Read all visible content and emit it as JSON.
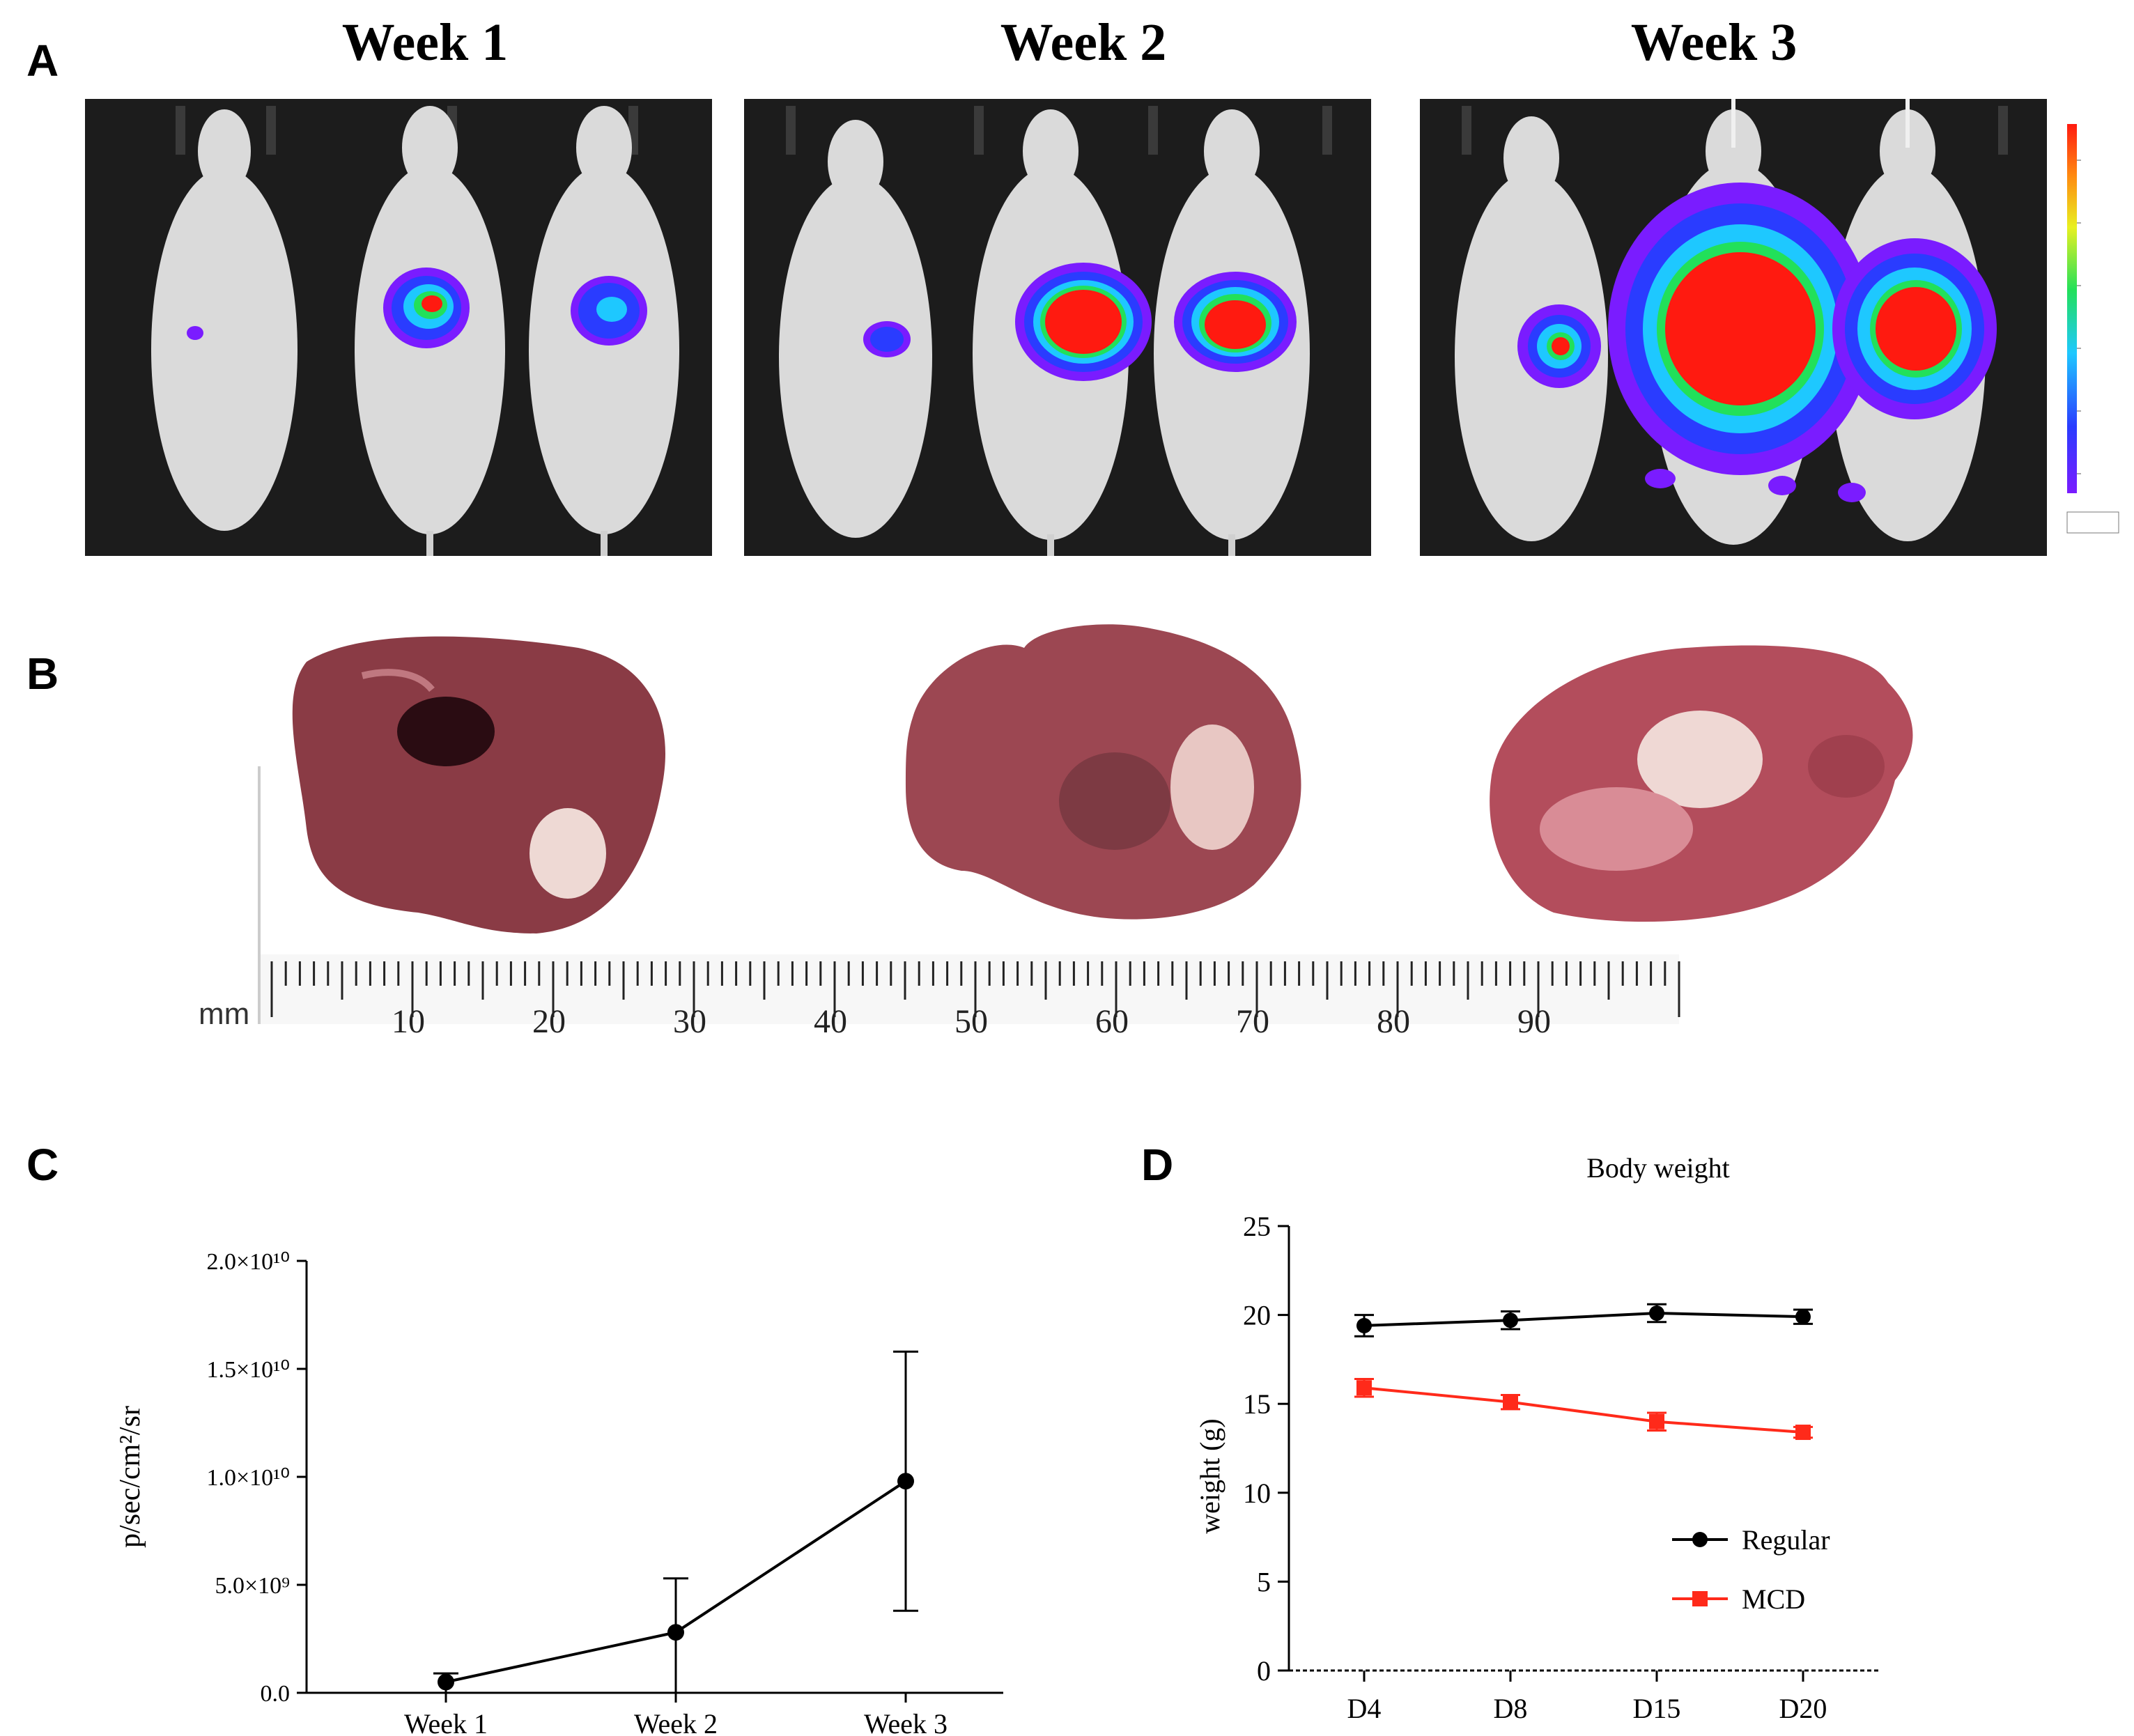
{
  "panels": {
    "a": "A",
    "b": "B",
    "c": "C",
    "d": "D"
  },
  "imaging": {
    "weeks": [
      "Week 1",
      "Week 2",
      "Week 3"
    ],
    "colorbar_colors": [
      "#7a1cff",
      "#2a3cff",
      "#1ec8ff",
      "#22e05a",
      "#e8f020",
      "#ff8a10",
      "#ff1a10"
    ]
  },
  "ruler": {
    "unit": "mm",
    "labels": [
      "10",
      "20",
      "30",
      "40",
      "50",
      "60",
      "70",
      "80",
      "90"
    ]
  },
  "chart_data": [
    {
      "type": "line",
      "panel": "C",
      "title": "",
      "xlabel": "",
      "ylabel": "p/sec/cm²/sr",
      "categories": [
        "Week 1",
        "Week 2",
        "Week 3"
      ],
      "values": [
        500000000.0,
        2800000000.0,
        9800000000.0
      ],
      "error_upper": [
        900000000.0,
        5300000000.0,
        15800000000.0
      ],
      "error_lower": [
        0.0,
        0.0,
        3800000000.0
      ],
      "ylim": [
        0,
        20000000000.0
      ],
      "yticks": [
        "0.0",
        "5.0×10⁹",
        "1.0×10¹⁰",
        "1.5×10¹⁰",
        "2.0×10¹⁰"
      ],
      "color": "#000000"
    },
    {
      "type": "line",
      "panel": "D",
      "title": "Body weight",
      "xlabel": "",
      "ylabel": "weight (g)",
      "categories": [
        "D4",
        "D8",
        "D15",
        "D20"
      ],
      "ylim": [
        0,
        25
      ],
      "yticks": [
        "0",
        "5",
        "10",
        "15",
        "20",
        "25"
      ],
      "legend_position": "bottom-right",
      "series": [
        {
          "name": "Regular",
          "values": [
            19.4,
            19.7,
            20.1,
            19.9
          ],
          "errors": [
            0.6,
            0.5,
            0.5,
            0.4
          ],
          "color": "#000000",
          "marker": "circle"
        },
        {
          "name": "MCD",
          "values": [
            15.9,
            15.1,
            14.0,
            13.4
          ],
          "errors": [
            0.5,
            0.4,
            0.5,
            0.3
          ],
          "color": "#ff2a1a",
          "marker": "square"
        }
      ]
    }
  ]
}
